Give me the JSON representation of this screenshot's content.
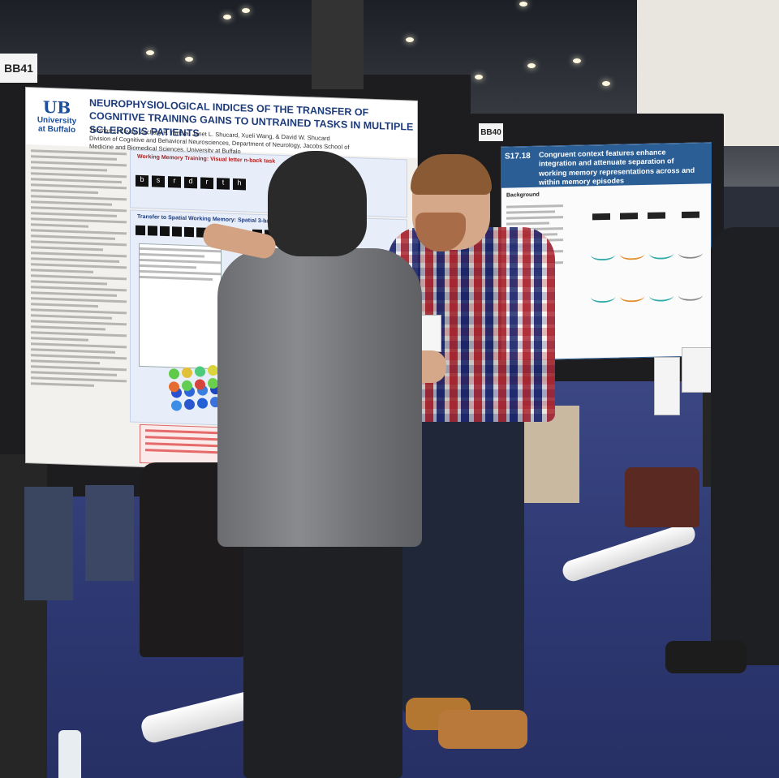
{
  "booths": {
    "left_number": "BB41",
    "right_number": "BB40"
  },
  "poster_left": {
    "university_line1": "University",
    "university_line2": "at Buffalo",
    "title": "NEUROPHYSIOLOGICAL INDICES OF THE TRANSFER OF COGNITIVE TRAINING GAINS TO UNTRAINED TASKS IN MULTIPLE SCLEROSIS PATIENTS",
    "authors": "Thomas J. Covey, Zachary P. Turtola, Janet L. Shucard, Xueli Wang, & David W. Shucard",
    "division": "Division of Cognitive and Behavioral Neurosciences, Department of Neurology, Jacobs School of Medicine and Biomedical Sciences, University at Buffalo",
    "section_working_memory": "Working Memory Training: Visual letter n-back task",
    "section_transfer": "Transfer to Spatial Working Memory: Spatial 3-back Task",
    "letters": [
      "b",
      "s",
      "r",
      "d",
      "r",
      "t",
      "h"
    ]
  },
  "poster_right": {
    "tag": "S17.18",
    "title": "Congruent context features enhance integration and attenuate separation of working memory representations across and within memory episodes",
    "section": "Background"
  },
  "colors": {
    "poster_right_header": "#2c5e96",
    "poster_left_title": "#1d3b7a",
    "carpet": "#2d3872"
  }
}
